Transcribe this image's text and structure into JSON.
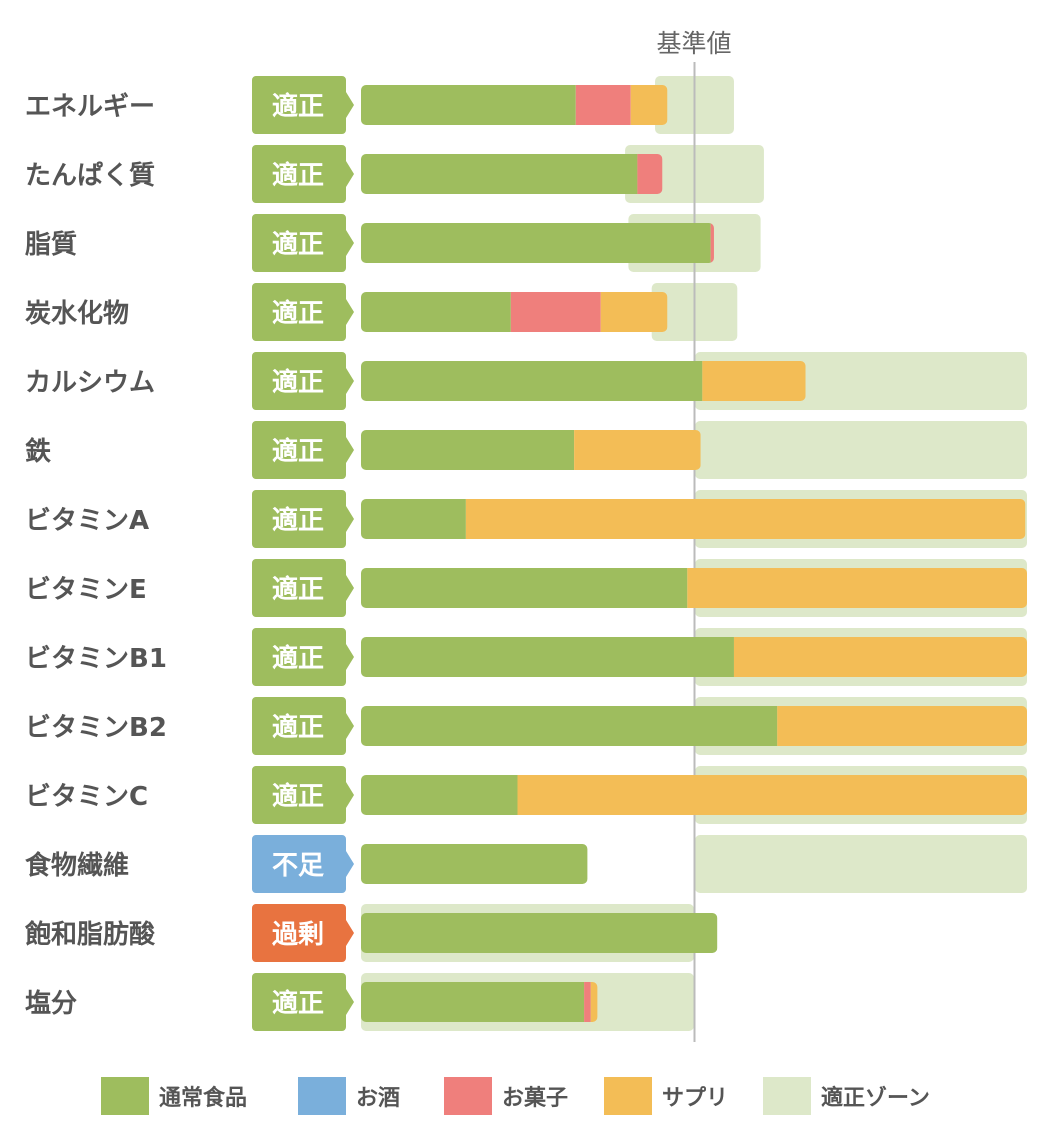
{
  "chart_data": {
    "type": "bar",
    "orientation": "horizontal",
    "stacked": true,
    "reference_label": "基準値",
    "reference_value": 100,
    "unit": "% of 基準値",
    "xlim": [
      0,
      200
    ],
    "categories": [
      "エネルギー",
      "たんぱく質",
      "脂質",
      "炭水化物",
      "カルシウム",
      "鉄",
      "ビタミンA",
      "ビタミンE",
      "ビタミンB1",
      "ビタミンB2",
      "ビタミンC",
      "食物繊維",
      "飽和脂肪酸",
      "塩分"
    ],
    "status": [
      "適正",
      "適正",
      "適正",
      "適正",
      "適正",
      "適正",
      "適正",
      "適正",
      "適正",
      "適正",
      "適正",
      "不足",
      "過剰",
      "適正"
    ],
    "status_colors": {
      "適正": "#9ebd5e",
      "不足": "#7aafdb",
      "過剰": "#e87340"
    },
    "series": [
      {
        "name": "通常食品",
        "color": "#9ebd5e",
        "values": [
          64.5,
          83,
          105,
          45,
          102.5,
          64,
          31.5,
          98,
          112,
          125,
          47,
          68,
          107,
          67
        ]
      },
      {
        "name": "お酒",
        "color": "#7aafdb",
        "values": [
          0,
          0,
          0,
          0,
          0,
          0,
          0,
          0,
          0,
          0,
          0,
          0,
          0,
          0
        ]
      },
      {
        "name": "お菓子",
        "color": "#ef7f7c",
        "values": [
          16.5,
          7.5,
          1,
          27,
          0,
          0,
          0,
          0,
          0,
          0,
          0,
          0,
          0,
          2
        ]
      },
      {
        "name": "サプリ",
        "color": "#f3bd56",
        "values": [
          11,
          0,
          0,
          20,
          31,
          38,
          168,
          102,
          88,
          75,
          153,
          0,
          0,
          2
        ]
      }
    ],
    "zone": {
      "name": "適正ゾーン",
      "color": "#dde8c9",
      "ranges": [
        [
          88,
          112
        ],
        [
          79,
          121
        ],
        [
          80,
          120
        ],
        [
          87,
          113
        ],
        [
          100,
          200
        ],
        [
          100,
          200
        ],
        [
          100,
          200
        ],
        [
          100,
          200
        ],
        [
          100,
          200
        ],
        [
          100,
          200
        ],
        [
          100,
          200
        ],
        [
          100,
          200
        ],
        [
          0,
          100
        ],
        [
          0,
          100
        ]
      ]
    },
    "legend": [
      "通常食品",
      "お酒",
      "お菓子",
      "サプリ",
      "適正ゾーン"
    ],
    "legend_position": "bottom"
  }
}
